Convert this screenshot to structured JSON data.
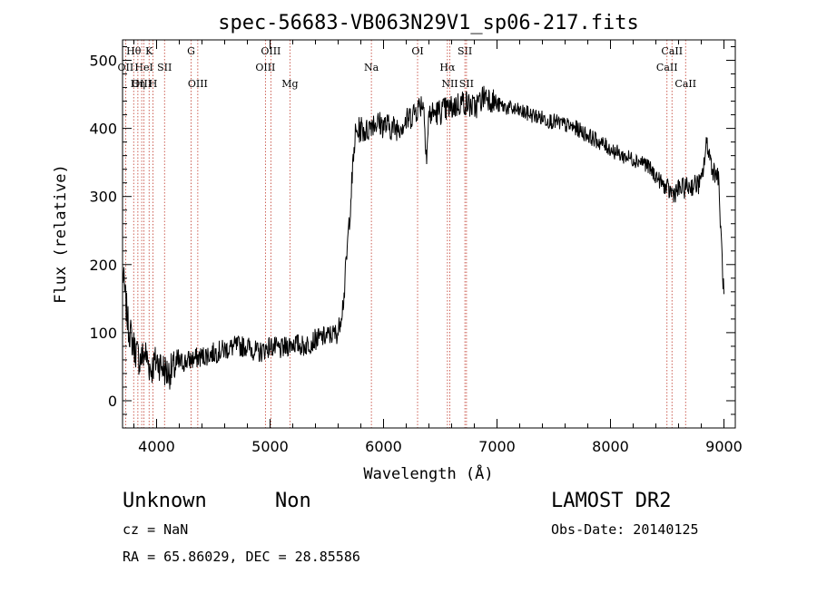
{
  "chart_data": {
    "type": "line",
    "title": "spec-56683-VB063N29V1_sp06-217.fits",
    "xlabel": "Wavelength (Å)",
    "ylabel": "Flux (relative)",
    "xlim": [
      3700,
      9100
    ],
    "ylim": [
      -40,
      530
    ],
    "x_ticks": [
      4000,
      5000,
      6000,
      7000,
      8000,
      9000
    ],
    "y_ticks": [
      0,
      100,
      200,
      300,
      400,
      500
    ],
    "grid": false,
    "series": [
      {
        "x": [
          3700,
          3750,
          3800,
          3850,
          3900,
          3950,
          4000,
          4050,
          4100,
          4200,
          4300,
          4400,
          4500,
          4600,
          4700,
          4800,
          4900,
          5000,
          5100,
          5200,
          5300,
          5400,
          5500,
          5600,
          5650,
          5700,
          5750,
          5800,
          5850,
          5900,
          6000,
          6100,
          6200,
          6300,
          6350,
          6380,
          6400,
          6500,
          6600,
          6700,
          6800,
          6850,
          6900,
          7000,
          7100,
          7200,
          7300,
          7400,
          7500,
          7600,
          7700,
          7800,
          7900,
          8000,
          8100,
          8200,
          8300,
          8400,
          8500,
          8550,
          8600,
          8700,
          8800,
          8850,
          8900,
          8950,
          9000
        ],
        "y": [
          190,
          110,
          80,
          60,
          70,
          45,
          60,
          50,
          40,
          55,
          60,
          65,
          70,
          75,
          80,
          80,
          70,
          80,
          75,
          85,
          80,
          90,
          95,
          100,
          150,
          270,
          390,
          400,
          395,
          410,
          405,
          400,
          410,
          430,
          440,
          360,
          420,
          425,
          430,
          440,
          430,
          440,
          450,
          435,
          430,
          425,
          420,
          415,
          410,
          405,
          400,
          390,
          380,
          370,
          360,
          355,
          350,
          330,
          310,
          305,
          310,
          315,
          320,
          380,
          340,
          330,
          150
        ]
      }
    ],
    "spectral_lines": [
      {
        "label": "Hθ",
        "x": 3798,
        "row": 0
      },
      {
        "label": "K",
        "x": 3934,
        "row": 0
      },
      {
        "label": "G",
        "x": 4304,
        "row": 0
      },
      {
        "label": "OIII",
        "x": 5007,
        "row": 0
      },
      {
        "label": "OI",
        "x": 6300,
        "row": 0
      },
      {
        "label": "SII",
        "x": 6717,
        "row": 0
      },
      {
        "label": "CaII",
        "x": 8542,
        "row": 0
      },
      {
        "label": "OII",
        "x": 3727,
        "row": 1
      },
      {
        "label": "HeI",
        "x": 3889,
        "row": 1
      },
      {
        "label": "SII",
        "x": 4070,
        "row": 1
      },
      {
        "label": "OIII",
        "x": 4959,
        "row": 1
      },
      {
        "label": "Na",
        "x": 5893,
        "row": 1
      },
      {
        "label": "Hα",
        "x": 6563,
        "row": 1
      },
      {
        "label": "CaII",
        "x": 8498,
        "row": 1
      },
      {
        "label": "OIII",
        "x": 3869,
        "row": 2
      },
      {
        "label": "Hη",
        "x": 3835,
        "row": 2
      },
      {
        "label": "H",
        "x": 3968,
        "row": 2
      },
      {
        "label": "OIII",
        "x": 4363,
        "row": 2
      },
      {
        "label": "Mg",
        "x": 5175,
        "row": 2
      },
      {
        "label": "NII",
        "x": 6584,
        "row": 2
      },
      {
        "label": "SII",
        "x": 6731,
        "row": 2
      },
      {
        "label": "CaII",
        "x": 8662,
        "row": 2
      }
    ]
  },
  "info": {
    "class": "Unknown",
    "subclass": "Non",
    "survey": "LAMOST DR2",
    "cz": "cz = NaN",
    "obs_date": "Obs-Date: 20140125",
    "radec": "RA =  65.86029, DEC =  28.85586"
  }
}
